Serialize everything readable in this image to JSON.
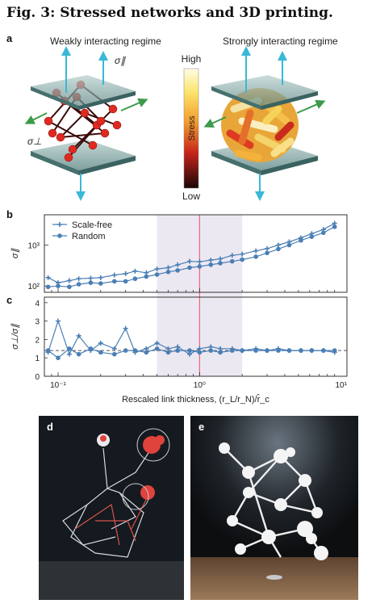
{
  "figure": {
    "title": "Fig. 3: Stressed networks and 3D printing.",
    "panel_a": {
      "label": "a",
      "left_title": "Weakly interacting regime",
      "right_title": "Strongly interacting regime",
      "sigma_par": "σ∥",
      "sigma_perp": "σ⊥"
    },
    "colorbar": {
      "high": "High",
      "low": "Low",
      "label": "Stress"
    },
    "panel_b": {
      "label": "b"
    },
    "panel_c": {
      "label": "c"
    },
    "panel_d": {
      "label": "d"
    },
    "panel_e": {
      "label": "e"
    },
    "xlabel": "Rescaled link thickness, (r_L/r_N)/r̂_c"
  },
  "chart_data": [
    {
      "type": "line",
      "panel": "b",
      "xscale": "log",
      "yscale": "log",
      "xlim": [
        0.08,
        11
      ],
      "ylim": [
        70,
        5500
      ],
      "yticks": [
        "10²",
        "10³"
      ],
      "ylabel": "σ∥",
      "legend_position": "top-left",
      "shaded_region": [
        0.5,
        2
      ],
      "reference_line_x": 1,
      "x": [
        0.085,
        0.1,
        0.12,
        0.14,
        0.17,
        0.2,
        0.25,
        0.3,
        0.35,
        0.42,
        0.5,
        0.6,
        0.7,
        0.85,
        1.0,
        1.2,
        1.4,
        1.7,
        2.0,
        2.5,
        3.0,
        3.6,
        4.3,
        5.2,
        6.2,
        7.5,
        9.0
      ],
      "series": [
        {
          "name": "Scale-free",
          "values": [
            160,
            120,
            135,
            150,
            155,
            160,
            185,
            200,
            230,
            210,
            260,
            280,
            330,
            400,
            390,
            430,
            460,
            560,
            600,
            720,
            820,
            1000,
            1200,
            1500,
            1900,
            2400,
            3400
          ]
        },
        {
          "name": "Random",
          "values": [
            95,
            100,
            95,
            110,
            120,
            115,
            130,
            130,
            150,
            170,
            190,
            220,
            240,
            280,
            300,
            330,
            360,
            400,
            440,
            520,
            640,
            800,
            1000,
            1300,
            1600,
            2000,
            2800
          ]
        }
      ]
    },
    {
      "type": "line",
      "panel": "c",
      "xscale": "log",
      "xlim": [
        0.08,
        11
      ],
      "ylim": [
        0,
        4.3
      ],
      "yticks": [
        0,
        1,
        2,
        3,
        4
      ],
      "ylabel": "σ⊥/σ∥",
      "xticks": [
        "10⁻¹",
        "10⁰",
        "10¹"
      ],
      "dashed_reference_y": 1.4,
      "x": [
        0.085,
        0.1,
        0.12,
        0.14,
        0.17,
        0.2,
        0.25,
        0.3,
        0.35,
        0.42,
        0.5,
        0.6,
        0.7,
        0.85,
        1.0,
        1.2,
        1.4,
        1.7,
        2.0,
        2.5,
        3.0,
        3.6,
        4.3,
        5.2,
        6.2,
        7.5,
        9.0
      ],
      "series": [
        {
          "name": "Scale-free",
          "values": [
            1.3,
            3.0,
            1.2,
            2.2,
            1.4,
            1.8,
            1.5,
            2.6,
            1.3,
            1.5,
            1.8,
            1.5,
            1.6,
            1.2,
            1.5,
            1.6,
            1.5,
            1.5,
            1.4,
            1.5,
            1.4,
            1.5,
            1.4,
            1.4,
            1.4,
            1.4,
            1.3
          ]
        },
        {
          "name": "Random",
          "values": [
            1.4,
            1.0,
            1.5,
            1.2,
            1.5,
            1.3,
            1.2,
            1.4,
            1.4,
            1.3,
            1.5,
            1.3,
            1.4,
            1.4,
            1.3,
            1.4,
            1.3,
            1.4,
            1.4,
            1.4,
            1.4,
            1.4,
            1.4,
            1.4,
            1.4,
            1.4,
            1.4
          ]
        }
      ]
    }
  ],
  "colors": {
    "series": "#4a7fb5",
    "shade": "#ece8f2",
    "refline": "#e8667f",
    "plate": "#6f9391"
  }
}
